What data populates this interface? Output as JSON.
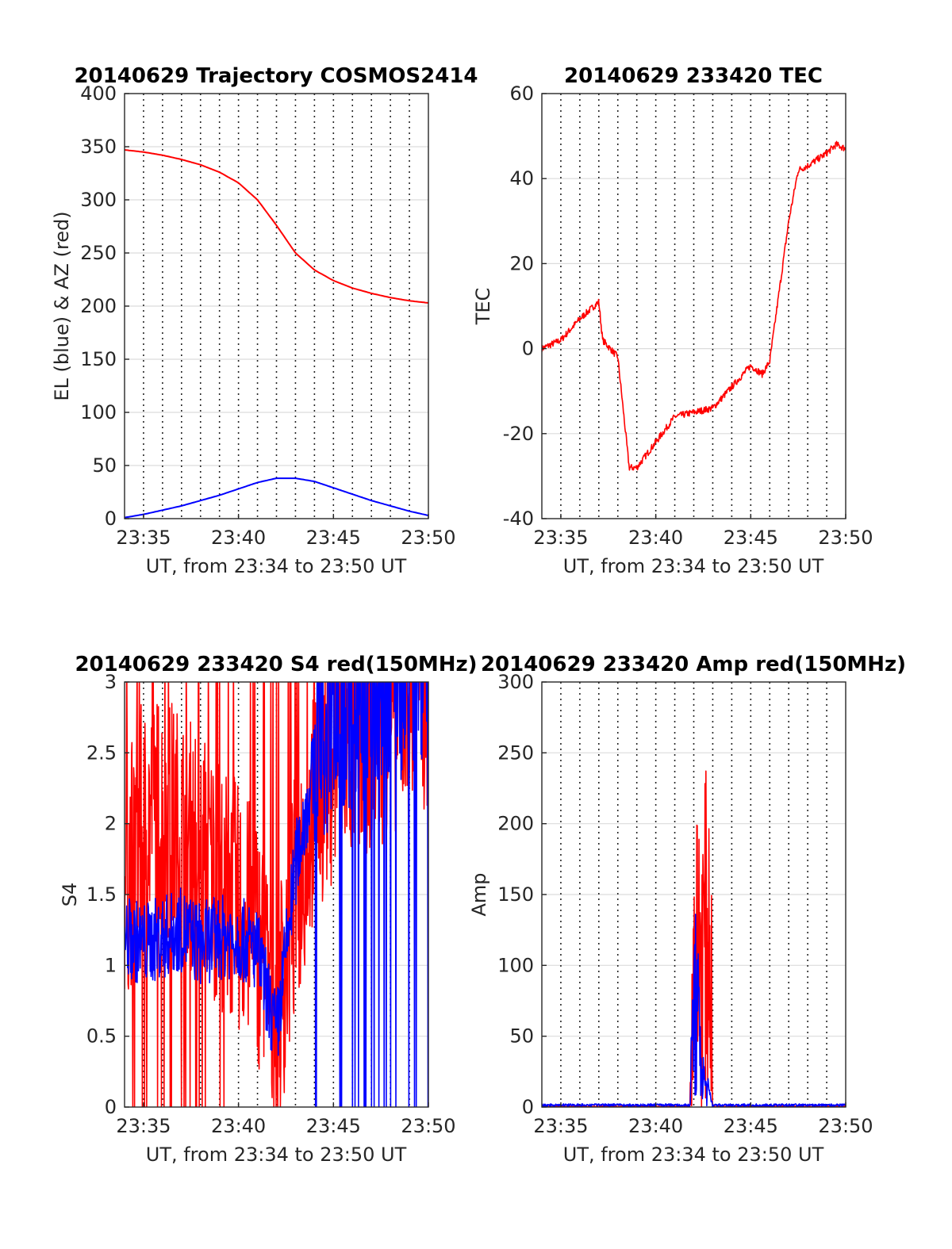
{
  "chart_data": [
    {
      "type": "line",
      "title": "20140629 Trajectory COSMOS2414",
      "xlabel": "UT, from 23:34 to 23:50 UT",
      "ylabel": "EL (blue) & AZ (red)",
      "xlim": [
        "23:34",
        "23:50"
      ],
      "ylim": [
        0,
        400
      ],
      "x_ticks": [
        "23:35",
        "23:40",
        "23:45",
        "23:50"
      ],
      "y_ticks": [
        "0",
        "50",
        "100",
        "150",
        "200",
        "250",
        "300",
        "350",
        "400"
      ],
      "grid": "minute lines dotted, y grid light",
      "series": [
        {
          "color": "#ff0000",
          "x": [
            "23:34",
            "23:35",
            "23:36",
            "23:37",
            "23:38",
            "23:39",
            "23:40",
            "23:41",
            "23:42",
            "23:43",
            "23:44",
            "23:45",
            "23:46",
            "23:47",
            "23:48",
            "23:49",
            "23:50"
          ],
          "values": [
            347,
            345,
            342,
            338,
            333,
            326,
            316,
            300,
            276,
            250,
            234,
            224,
            217,
            212,
            208,
            205,
            203
          ]
        },
        {
          "color": "#0000ff",
          "x": [
            "23:34",
            "23:35",
            "23:36",
            "23:37",
            "23:38",
            "23:39",
            "23:40",
            "23:41",
            "23:42",
            "23:43",
            "23:44",
            "23:45",
            "23:46",
            "23:47",
            "23:48",
            "23:49",
            "23:50"
          ],
          "values": [
            1,
            4,
            8,
            12,
            17,
            22,
            28,
            34,
            38,
            38,
            35,
            29,
            23,
            17,
            12,
            7,
            3
          ]
        }
      ]
    },
    {
      "type": "line",
      "title": "20140629 233420 TEC",
      "xlabel": "UT, from 23:34 to 23:50 UT",
      "ylabel": "TEC",
      "xlim": [
        "23:34",
        "23:50"
      ],
      "ylim": [
        -40,
        60
      ],
      "x_ticks": [
        "23:35",
        "23:40",
        "23:45",
        "23:50"
      ],
      "y_ticks": [
        "-40",
        "-20",
        "0",
        "20",
        "40",
        "60"
      ],
      "grid": "minute lines dotted, y grid light",
      "series": [
        {
          "color": "#ff0000",
          "x": [
            "23:34",
            "23:35",
            "23:36",
            "23:37",
            "23:37.2",
            "23:38",
            "23:38.6",
            "23:39",
            "23:40",
            "23:41",
            "23:42",
            "23:43",
            "23:44",
            "23:45",
            "23:45.6",
            "23:46",
            "23:47",
            "23:47.5",
            "23:48",
            "23:49",
            "23:49.5",
            "23:50"
          ],
          "values": [
            0,
            2,
            7,
            11,
            2,
            -2,
            -28,
            -28,
            -22,
            -16,
            -15,
            -14,
            -9,
            -4,
            -6,
            -3,
            30,
            42,
            43,
            46,
            48,
            47
          ]
        }
      ]
    },
    {
      "type": "line",
      "title": "20140629 233420 S4 red(150MHz)",
      "xlabel": "UT, from 23:34 to 23:50 UT",
      "ylabel": "S4",
      "xlim": [
        "23:34",
        "23:50"
      ],
      "ylim": [
        0,
        3
      ],
      "x_ticks": [
        "23:35",
        "23:40",
        "23:45",
        "23:50"
      ],
      "y_ticks": [
        "0",
        "0.5",
        "1",
        "1.5",
        "2",
        "2.5",
        "3"
      ],
      "grid": "minute lines dotted, y grid light",
      "series": [
        {
          "color": "#ff0000",
          "x": [
            "23:34",
            "23:35",
            "23:36",
            "23:37",
            "23:38",
            "23:39",
            "23:40",
            "23:41",
            "23:42",
            "23:43",
            "23:44",
            "23:45",
            "23:46",
            "23:47",
            "23:48",
            "23:49",
            "23:50"
          ],
          "values": [
            1.6,
            2.0,
            2.1,
            1.9,
            1.8,
            1.6,
            1.4,
            1.2,
            0.6,
            1.5,
            2.2,
            2.5,
            2.6,
            2.7,
            2.8,
            2.9,
            3.0
          ]
        },
        {
          "color": "#0000ff",
          "x": [
            "23:34",
            "23:35",
            "23:36",
            "23:37",
            "23:38",
            "23:39",
            "23:40",
            "23:41",
            "23:42",
            "23:43",
            "23:44",
            "23:45",
            "23:46",
            "23:47",
            "23:48",
            "23:49",
            "23:50"
          ],
          "values": [
            1.2,
            1.15,
            1.2,
            1.25,
            1.15,
            1.2,
            1.2,
            1.1,
            0.5,
            1.7,
            2.4,
            2.6,
            2.7,
            2.8,
            2.9,
            2.9,
            3.0
          ]
        }
      ]
    },
    {
      "type": "line",
      "title": "20140629 233420 Amp red(150MHz)",
      "xlabel": "UT, from 23:34 to 23:50 UT",
      "ylabel": "Amp",
      "xlim": [
        "23:34",
        "23:50"
      ],
      "ylim": [
        0,
        300
      ],
      "x_ticks": [
        "23:35",
        "23:40",
        "23:45",
        "23:50"
      ],
      "y_ticks": [
        "0",
        "50",
        "100",
        "150",
        "200",
        "250",
        "300"
      ],
      "grid": "minute lines dotted, y grid light",
      "series": [
        {
          "color": "#ff0000",
          "x": [
            "23:34",
            "23:41.8",
            "23:42.0",
            "23:42.3",
            "23:42.6",
            "23:42.9",
            "23:43.0",
            "23:50"
          ],
          "values": [
            0,
            5,
            210,
            220,
            238,
            235,
            5,
            0
          ]
        },
        {
          "color": "#0000ff",
          "x": [
            "23:34",
            "23:41.8",
            "23:42.0",
            "23:42.2",
            "23:42.5",
            "23:43.0",
            "23:50"
          ],
          "values": [
            1,
            2,
            158,
            120,
            40,
            3,
            1
          ]
        }
      ]
    }
  ]
}
